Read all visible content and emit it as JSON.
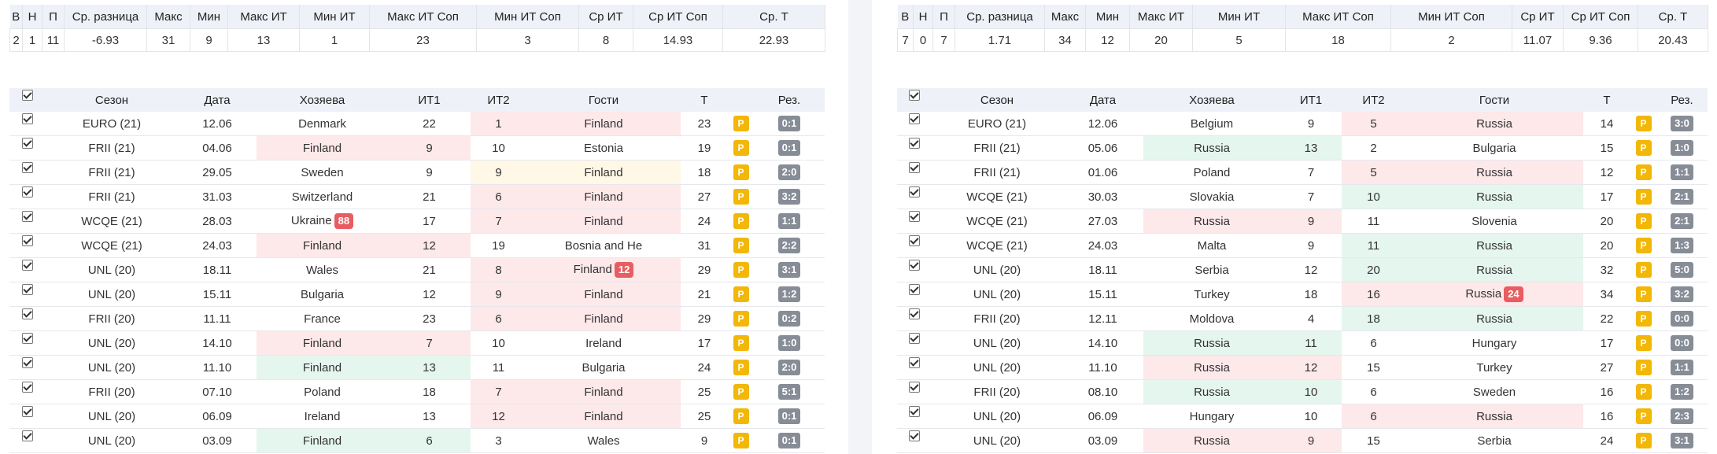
{
  "summary_headers": [
    "В",
    "Н",
    "П",
    "Ср. разница",
    "Макс",
    "Мин",
    "Макс ИТ",
    "Мин ИТ",
    "Макс ИТ Соп",
    "Мин ИТ Соп",
    "Ср ИТ",
    "Ср ИТ Соп",
    "Ср. Т"
  ],
  "match_headers": [
    "Сезон",
    "Дата",
    "Хозяева",
    "ИТ1",
    "ИТ2",
    "Гости",
    "Т",
    "Рез."
  ],
  "p_label": "P",
  "left": {
    "summary": [
      "2",
      "1",
      "11",
      "-6.93",
      "31",
      "9",
      "13",
      "1",
      "23",
      "3",
      "8",
      "14.93",
      "22.93"
    ],
    "rows": [
      {
        "season": "EURO (21)",
        "date": "12.06",
        "home": "Denmark",
        "it1": "22",
        "it2": "1",
        "away": "Finland",
        "total": "23",
        "result": "0:1",
        "hl": [
          "",
          "",
          "red"
        ]
      },
      {
        "season": "FRII (21)",
        "date": "04.06",
        "home": "Finland",
        "it1": "9",
        "it2": "10",
        "away": "Estonia",
        "total": "19",
        "result": "0:1",
        "hl": [
          "red",
          "",
          ""
        ]
      },
      {
        "season": "FRII (21)",
        "date": "29.05",
        "home": "Sweden",
        "it1": "9",
        "it2": "9",
        "away": "Finland",
        "total": "18",
        "result": "2:0",
        "hl": [
          "",
          "",
          "yellow"
        ]
      },
      {
        "season": "FRII (21)",
        "date": "31.03",
        "home": "Switzerland",
        "it1": "21",
        "it2": "6",
        "away": "Finland",
        "total": "27",
        "result": "3:2",
        "hl": [
          "",
          "",
          "red"
        ]
      },
      {
        "season": "WCQE (21)",
        "date": "28.03",
        "home": "Ukraine",
        "home_badge": "88",
        "it1": "17",
        "it2": "7",
        "away": "Finland",
        "total": "24",
        "result": "1:1",
        "hl": [
          "",
          "",
          "red"
        ]
      },
      {
        "season": "WCQE (21)",
        "date": "24.03",
        "home": "Finland",
        "it1": "12",
        "it2": "19",
        "away": "Bosnia and He",
        "total": "31",
        "result": "2:2",
        "hl": [
          "red",
          "",
          ""
        ]
      },
      {
        "season": "UNL (20)",
        "date": "18.11",
        "home": "Wales",
        "it1": "21",
        "it2": "8",
        "away": "Finland",
        "away_badge": "12",
        "total": "29",
        "result": "3:1",
        "hl": [
          "",
          "",
          "red"
        ]
      },
      {
        "season": "UNL (20)",
        "date": "15.11",
        "home": "Bulgaria",
        "it1": "12",
        "it2": "9",
        "away": "Finland",
        "total": "21",
        "result": "1:2",
        "hl": [
          "",
          "",
          "red"
        ]
      },
      {
        "season": "FRII (20)",
        "date": "11.11",
        "home": "France",
        "it1": "23",
        "it2": "6",
        "away": "Finland",
        "total": "29",
        "result": "0:2",
        "hl": [
          "",
          "",
          "red"
        ]
      },
      {
        "season": "UNL (20)",
        "date": "14.10",
        "home": "Finland",
        "it1": "7",
        "it2": "10",
        "away": "Ireland",
        "total": "17",
        "result": "1:0",
        "hl": [
          "red",
          "",
          ""
        ]
      },
      {
        "season": "UNL (20)",
        "date": "11.10",
        "home": "Finland",
        "it1": "13",
        "it2": "11",
        "away": "Bulgaria",
        "total": "24",
        "result": "2:0",
        "hl": [
          "green",
          "",
          ""
        ]
      },
      {
        "season": "FRII (20)",
        "date": "07.10",
        "home": "Poland",
        "it1": "18",
        "it2": "7",
        "away": "Finland",
        "total": "25",
        "result": "5:1",
        "hl": [
          "",
          "",
          "red"
        ]
      },
      {
        "season": "UNL (20)",
        "date": "06.09",
        "home": "Ireland",
        "it1": "13",
        "it2": "12",
        "away": "Finland",
        "total": "25",
        "result": "0:1",
        "hl": [
          "",
          "",
          "red"
        ]
      },
      {
        "season": "UNL (20)",
        "date": "03.09",
        "home": "Finland",
        "it1": "6",
        "it2": "3",
        "away": "Wales",
        "total": "9",
        "result": "0:1",
        "hl": [
          "green",
          "",
          ""
        ]
      }
    ]
  },
  "right": {
    "summary": [
      "7",
      "0",
      "7",
      "1.71",
      "34",
      "12",
      "20",
      "5",
      "18",
      "2",
      "11.07",
      "9.36",
      "20.43"
    ],
    "rows": [
      {
        "season": "EURO (21)",
        "date": "12.06",
        "home": "Belgium",
        "it1": "9",
        "it2": "5",
        "away": "Russia",
        "total": "14",
        "result": "3:0",
        "hl": [
          "",
          "",
          "red"
        ]
      },
      {
        "season": "FRII (21)",
        "date": "05.06",
        "home": "Russia",
        "it1": "13",
        "it2": "2",
        "away": "Bulgaria",
        "total": "15",
        "result": "1:0",
        "hl": [
          "green",
          "",
          ""
        ]
      },
      {
        "season": "FRII (21)",
        "date": "01.06",
        "home": "Poland",
        "it1": "7",
        "it2": "5",
        "away": "Russia",
        "total": "12",
        "result": "1:1",
        "hl": [
          "",
          "",
          "red"
        ]
      },
      {
        "season": "WCQE (21)",
        "date": "30.03",
        "home": "Slovakia",
        "it1": "7",
        "it2": "10",
        "away": "Russia",
        "total": "17",
        "result": "2:1",
        "hl": [
          "",
          "",
          "green"
        ]
      },
      {
        "season": "WCQE (21)",
        "date": "27.03",
        "home": "Russia",
        "it1": "9",
        "it2": "11",
        "away": "Slovenia",
        "total": "20",
        "result": "2:1",
        "hl": [
          "red",
          "",
          ""
        ]
      },
      {
        "season": "WCQE (21)",
        "date": "24.03",
        "home": "Malta",
        "it1": "9",
        "it2": "11",
        "away": "Russia",
        "total": "20",
        "result": "1:3",
        "hl": [
          "",
          "",
          "green"
        ]
      },
      {
        "season": "UNL (20)",
        "date": "18.11",
        "home": "Serbia",
        "it1": "12",
        "it2": "20",
        "away": "Russia",
        "total": "32",
        "result": "5:0",
        "hl": [
          "",
          "",
          "green"
        ]
      },
      {
        "season": "UNL (20)",
        "date": "15.11",
        "home": "Turkey",
        "it1": "18",
        "it2": "16",
        "away": "Russia",
        "away_badge": "24",
        "total": "34",
        "result": "3:2",
        "hl": [
          "",
          "",
          "red"
        ]
      },
      {
        "season": "FRII (20)",
        "date": "12.11",
        "home": "Moldova",
        "it1": "4",
        "it2": "18",
        "away": "Russia",
        "total": "22",
        "result": "0:0",
        "hl": [
          "",
          "",
          "green"
        ]
      },
      {
        "season": "UNL (20)",
        "date": "14.10",
        "home": "Russia",
        "it1": "11",
        "it2": "6",
        "away": "Hungary",
        "total": "17",
        "result": "0:0",
        "hl": [
          "green",
          "",
          ""
        ]
      },
      {
        "season": "UNL (20)",
        "date": "11.10",
        "home": "Russia",
        "it1": "12",
        "it2": "15",
        "away": "Turkey",
        "total": "27",
        "result": "1:1",
        "hl": [
          "red",
          "",
          ""
        ]
      },
      {
        "season": "FRII (20)",
        "date": "08.10",
        "home": "Russia",
        "it1": "10",
        "it2": "6",
        "away": "Sweden",
        "total": "16",
        "result": "1:2",
        "hl": [
          "green",
          "",
          ""
        ]
      },
      {
        "season": "UNL (20)",
        "date": "06.09",
        "home": "Hungary",
        "it1": "10",
        "it2": "6",
        "away": "Russia",
        "total": "16",
        "result": "2:3",
        "hl": [
          "",
          "",
          "red"
        ]
      },
      {
        "season": "UNL (20)",
        "date": "03.09",
        "home": "Russia",
        "it1": "9",
        "it2": "15",
        "away": "Serbia",
        "total": "24",
        "result": "3:1",
        "hl": [
          "red",
          "",
          ""
        ]
      }
    ]
  }
}
